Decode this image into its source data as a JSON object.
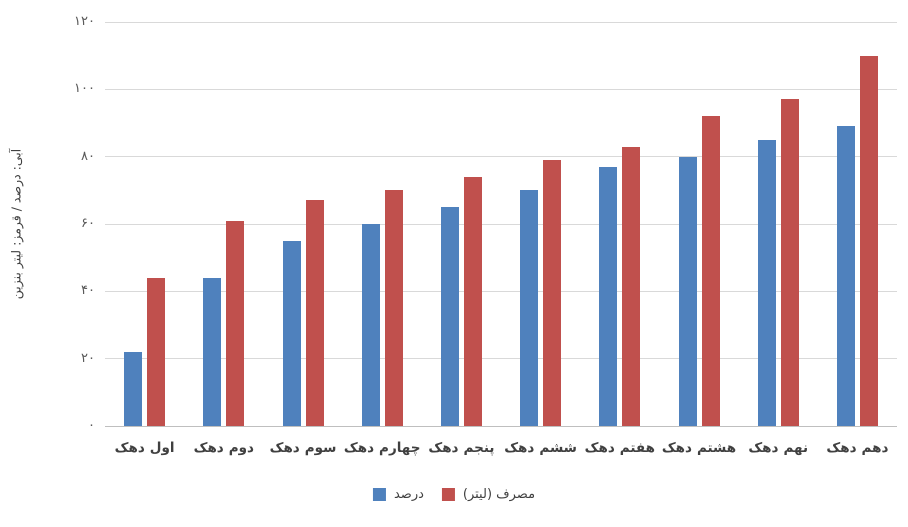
{
  "chart_data": {
    "type": "bar",
    "title": "",
    "categories": [
      "دهک اول",
      "دهک دوم",
      "دهک سوم",
      "دهک چهارم",
      "دهک پنجم",
      "دهک ششم",
      "دهک هفتم",
      "دهک هشتم",
      "دهک نهم",
      "دهک دهم"
    ],
    "series": [
      {
        "name": "درصد",
        "color": "#4f81bd",
        "values": [
          22,
          44,
          55,
          60,
          65,
          70,
          77,
          80,
          85,
          89
        ]
      },
      {
        "name": "مصرف (لیتر)",
        "color": "#c0504d",
        "values": [
          44,
          61,
          67,
          70,
          74,
          79,
          83,
          92,
          97,
          110
        ]
      }
    ],
    "xlabel": "",
    "ylabel": "آبی: درصد / قرمز: لیتر بنزین",
    "ylim": [
      0,
      120
    ],
    "ytick_step": 20,
    "ytick_labels": [
      "۰",
      "۲۰",
      "۴۰",
      "۶۰",
      "۸۰",
      "۱۰۰",
      "۱۲۰"
    ],
    "grid": true,
    "legend_position": "bottom",
    "legend_order": [
      "درصد",
      "مصرف (لیتر)"
    ]
  },
  "colors": {
    "series_blue": "#4f81bd",
    "series_red": "#c0504d",
    "gridline": "#d9d9d9",
    "axis_line": "#bfbfbf",
    "tick_text": "#595959",
    "label_text": "#404040",
    "background": "#ffffff"
  }
}
